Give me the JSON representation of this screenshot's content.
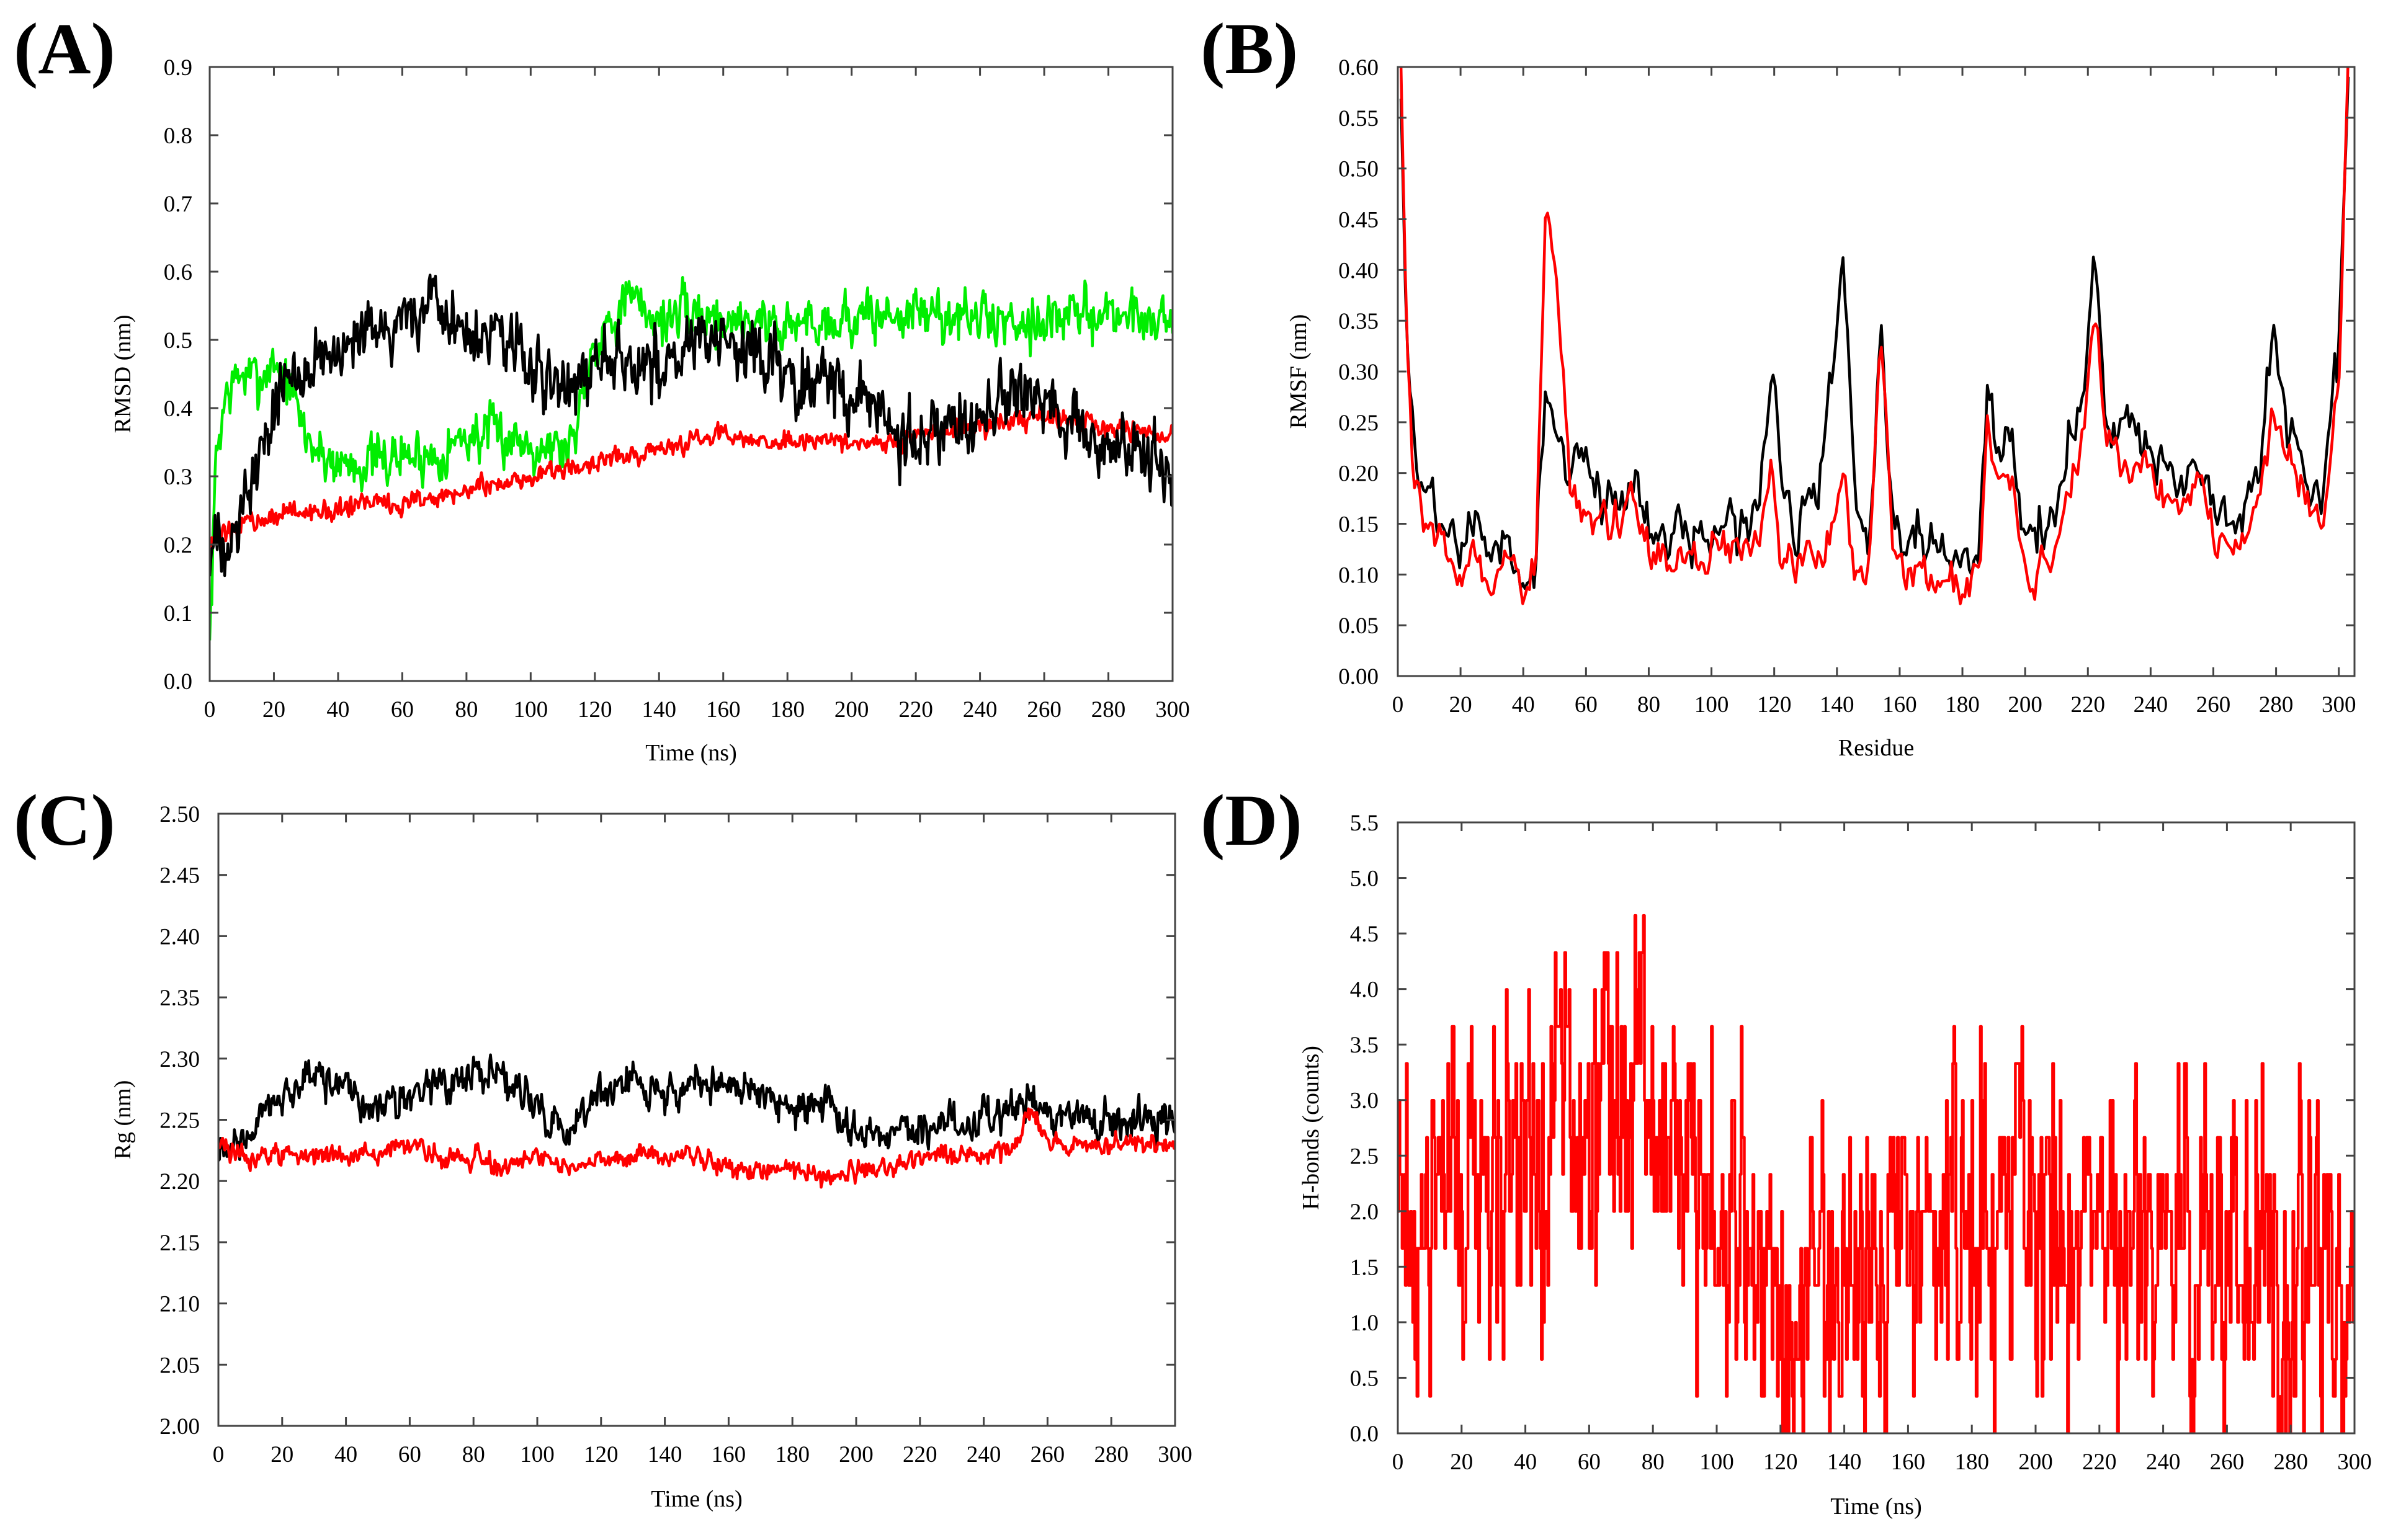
{
  "chart_data": [
    {
      "panel": "(A)",
      "type": "line",
      "title": "",
      "xlabel": "Time (ns)",
      "ylabel": "RMSD (nm)",
      "xlim": [
        0,
        300
      ],
      "ylim": [
        0,
        0.9
      ],
      "xticks": [
        0,
        20,
        40,
        60,
        80,
        100,
        120,
        140,
        160,
        180,
        200,
        220,
        240,
        260,
        280,
        300
      ],
      "xtick_labels": [
        "0",
        "20",
        "40",
        "60",
        "80",
        "100",
        "120",
        "140",
        "160",
        "180",
        "200",
        "220",
        "240",
        "260",
        "280",
        "300"
      ],
      "yticks": [
        0,
        0.1,
        0.2,
        0.3,
        0.4,
        0.5,
        0.6,
        0.7,
        0.8,
        0.9
      ],
      "ytick_labels": [
        "0.0",
        "0.1",
        "0.2",
        "0.3",
        "0.4",
        "0.5",
        "0.6",
        "0.7",
        "0.8",
        "0.9"
      ],
      "legend": "none",
      "series": [
        {
          "name": "green",
          "color": "#00ee00",
          "noise": 0.028,
          "x": [
            0,
            2,
            5,
            10,
            15,
            20,
            25,
            30,
            35,
            40,
            50,
            60,
            70,
            80,
            90,
            100,
            110,
            113,
            117,
            120,
            130,
            140,
            150,
            160,
            170,
            180,
            190,
            200,
            220,
            240,
            260,
            280,
            300
          ],
          "y": [
            0.05,
            0.33,
            0.42,
            0.45,
            0.44,
            0.47,
            0.43,
            0.36,
            0.33,
            0.32,
            0.32,
            0.33,
            0.33,
            0.36,
            0.36,
            0.35,
            0.34,
            0.35,
            0.45,
            0.5,
            0.56,
            0.53,
            0.54,
            0.53,
            0.53,
            0.52,
            0.53,
            0.53,
            0.54,
            0.53,
            0.53,
            0.54,
            0.53
          ]
        },
        {
          "name": "red",
          "color": "#ff0000",
          "noise": 0.011,
          "x": [
            0,
            3,
            6,
            10,
            20,
            30,
            40,
            50,
            60,
            70,
            80,
            90,
            100,
            110,
            120,
            130,
            140,
            150,
            160,
            170,
            180,
            190,
            200,
            210,
            220,
            230,
            240,
            250,
            260,
            270,
            280,
            290,
            300
          ],
          "y": [
            0.19,
            0.21,
            0.22,
            0.23,
            0.24,
            0.25,
            0.25,
            0.26,
            0.26,
            0.27,
            0.28,
            0.29,
            0.3,
            0.31,
            0.32,
            0.33,
            0.34,
            0.35,
            0.36,
            0.35,
            0.35,
            0.35,
            0.35,
            0.35,
            0.36,
            0.37,
            0.37,
            0.38,
            0.39,
            0.38,
            0.37,
            0.36,
            0.36
          ]
        },
        {
          "name": "black",
          "color": "#000000",
          "noise": 0.036,
          "x": [
            0,
            5,
            10,
            15,
            20,
            25,
            30,
            40,
            50,
            60,
            70,
            80,
            90,
            100,
            110,
            120,
            130,
            140,
            150,
            160,
            170,
            180,
            190,
            200,
            210,
            220,
            230,
            240,
            250,
            260,
            270,
            280,
            290,
            300
          ],
          "y": [
            0.18,
            0.22,
            0.25,
            0.32,
            0.4,
            0.45,
            0.47,
            0.47,
            0.5,
            0.53,
            0.56,
            0.5,
            0.51,
            0.46,
            0.41,
            0.49,
            0.47,
            0.46,
            0.5,
            0.49,
            0.48,
            0.46,
            0.44,
            0.42,
            0.38,
            0.35,
            0.36,
            0.38,
            0.42,
            0.41,
            0.37,
            0.34,
            0.33,
            0.31
          ]
        }
      ]
    },
    {
      "panel": "(B)",
      "type": "line",
      "title": "",
      "xlabel": "Residue",
      "ylabel": "RMSF (nm)",
      "xlim": [
        0,
        305
      ],
      "ylim": [
        0,
        0.6
      ],
      "xticks": [
        0,
        20,
        40,
        60,
        80,
        100,
        120,
        140,
        160,
        180,
        200,
        220,
        240,
        260,
        280,
        300
      ],
      "xtick_labels": [
        "0",
        "20",
        "40",
        "60",
        "80",
        "100",
        "120",
        "140",
        "160",
        "180",
        "200",
        "220",
        "240",
        "260",
        "280",
        "300"
      ],
      "yticks": [
        0,
        0.05,
        0.1,
        0.15,
        0.2,
        0.25,
        0.3,
        0.35,
        0.4,
        0.45,
        0.5,
        0.55,
        0.6
      ],
      "ytick_labels": [
        "0.00",
        "0.05",
        "0.10",
        "0.15",
        "0.20",
        "0.25",
        "0.30",
        "0.35",
        "0.40",
        "0.45",
        "0.50",
        "0.55",
        "0.60"
      ],
      "legend": "none",
      "series": [
        {
          "name": "black",
          "color": "#000000",
          "noise": 0.018,
          "x": [
            1,
            3,
            5,
            10,
            15,
            20,
            25,
            30,
            35,
            40,
            44,
            47,
            50,
            55,
            60,
            65,
            70,
            75,
            80,
            85,
            90,
            95,
            100,
            105,
            110,
            115,
            119,
            122,
            126,
            130,
            135,
            142,
            146,
            150,
            154,
            158,
            162,
            166,
            170,
            175,
            180,
            185,
            188,
            192,
            196,
            200,
            205,
            210,
            215,
            219,
            222,
            226,
            230,
            235,
            240,
            245,
            250,
            255,
            260,
            265,
            270,
            275,
            279,
            283,
            287,
            291,
            295,
            300,
            303
          ],
          "y": [
            0.58,
            0.3,
            0.22,
            0.18,
            0.14,
            0.12,
            0.16,
            0.11,
            0.12,
            0.09,
            0.11,
            0.28,
            0.25,
            0.2,
            0.21,
            0.17,
            0.18,
            0.19,
            0.15,
            0.13,
            0.15,
            0.14,
            0.14,
            0.15,
            0.15,
            0.16,
            0.33,
            0.2,
            0.15,
            0.16,
            0.2,
            0.41,
            0.15,
            0.13,
            0.34,
            0.14,
            0.12,
            0.14,
            0.13,
            0.12,
            0.11,
            0.12,
            0.29,
            0.22,
            0.24,
            0.12,
            0.15,
            0.16,
            0.24,
            0.3,
            0.43,
            0.25,
            0.26,
            0.24,
            0.22,
            0.2,
            0.18,
            0.21,
            0.17,
            0.14,
            0.15,
            0.2,
            0.34,
            0.26,
            0.22,
            0.18,
            0.17,
            0.33,
            0.6
          ]
        },
        {
          "name": "red",
          "color": "#ff0000",
          "noise": 0.015,
          "x": [
            1,
            3,
            5,
            10,
            15,
            20,
            25,
            30,
            35,
            40,
            44,
            47,
            50,
            55,
            60,
            65,
            70,
            75,
            80,
            85,
            90,
            95,
            100,
            105,
            110,
            115,
            119,
            122,
            126,
            130,
            135,
            142,
            146,
            150,
            154,
            158,
            162,
            166,
            170,
            175,
            180,
            185,
            188,
            192,
            196,
            200,
            205,
            210,
            215,
            219,
            222,
            226,
            230,
            235,
            240,
            245,
            250,
            255,
            260,
            265,
            270,
            275,
            279,
            283,
            287,
            291,
            295,
            300,
            303
          ],
          "y": [
            0.59,
            0.31,
            0.2,
            0.15,
            0.12,
            0.1,
            0.12,
            0.09,
            0.11,
            0.08,
            0.1,
            0.47,
            0.42,
            0.18,
            0.15,
            0.14,
            0.15,
            0.18,
            0.12,
            0.11,
            0.13,
            0.12,
            0.12,
            0.13,
            0.12,
            0.12,
            0.2,
            0.11,
            0.12,
            0.13,
            0.12,
            0.19,
            0.1,
            0.1,
            0.34,
            0.12,
            0.1,
            0.11,
            0.1,
            0.1,
            0.1,
            0.1,
            0.24,
            0.18,
            0.2,
            0.1,
            0.11,
            0.13,
            0.2,
            0.25,
            0.37,
            0.22,
            0.22,
            0.2,
            0.2,
            0.18,
            0.17,
            0.19,
            0.14,
            0.12,
            0.14,
            0.18,
            0.26,
            0.22,
            0.2,
            0.16,
            0.15,
            0.27,
            0.6
          ]
        }
      ]
    },
    {
      "panel": "(C)",
      "type": "line",
      "title": "",
      "xlabel": "Time (ns)",
      "ylabel": "Rg (nm)",
      "xlim": [
        0,
        300
      ],
      "ylim": [
        2.0,
        2.5
      ],
      "xticks": [
        0,
        20,
        40,
        60,
        80,
        100,
        120,
        140,
        160,
        180,
        200,
        220,
        240,
        260,
        280,
        300
      ],
      "xtick_labels": [
        "0",
        "20",
        "40",
        "60",
        "80",
        "100",
        "120",
        "140",
        "160",
        "180",
        "200",
        "220",
        "240",
        "260",
        "280",
        "300"
      ],
      "yticks": [
        2.0,
        2.05,
        2.1,
        2.15,
        2.2,
        2.25,
        2.3,
        2.35,
        2.4,
        2.45,
        2.5
      ],
      "ytick_labels": [
        "2.00",
        "2.05",
        "2.10",
        "2.15",
        "2.20",
        "2.25",
        "2.30",
        "2.35",
        "2.40",
        "2.45",
        "2.50"
      ],
      "legend": "none",
      "series": [
        {
          "name": "black",
          "color": "#000000",
          "noise": 0.011,
          "x": [
            0,
            10,
            20,
            30,
            40,
            50,
            60,
            70,
            80,
            90,
            100,
            110,
            120,
            130,
            140,
            150,
            160,
            170,
            180,
            190,
            200,
            210,
            220,
            230,
            240,
            250,
            255,
            260,
            270,
            280,
            290,
            300
          ],
          "y": [
            2.22,
            2.24,
            2.27,
            2.29,
            2.27,
            2.26,
            2.27,
            2.28,
            2.29,
            2.28,
            2.26,
            2.24,
            2.27,
            2.28,
            2.27,
            2.28,
            2.28,
            2.27,
            2.26,
            2.26,
            2.24,
            2.24,
            2.24,
            2.25,
            2.25,
            2.26,
            2.27,
            2.26,
            2.25,
            2.25,
            2.25,
            2.25
          ]
        },
        {
          "name": "red",
          "color": "#ff0000",
          "noise": 0.006,
          "x": [
            0,
            10,
            20,
            30,
            40,
            50,
            60,
            70,
            80,
            90,
            100,
            110,
            120,
            130,
            140,
            150,
            160,
            170,
            180,
            190,
            200,
            210,
            220,
            230,
            240,
            250,
            255,
            258,
            262,
            270,
            280,
            290,
            300
          ],
          "y": [
            2.23,
            2.22,
            2.22,
            2.22,
            2.22,
            2.22,
            2.23,
            2.22,
            2.22,
            2.21,
            2.22,
            2.21,
            2.22,
            2.22,
            2.22,
            2.22,
            2.21,
            2.21,
            2.21,
            2.2,
            2.21,
            2.21,
            2.22,
            2.22,
            2.22,
            2.23,
            2.26,
            2.24,
            2.23,
            2.23,
            2.23,
            2.23,
            2.23
          ]
        }
      ]
    },
    {
      "panel": "(D)",
      "type": "line",
      "title": "",
      "xlabel": "Time (ns)",
      "ylabel": "H-bonds (counts)",
      "xlim": [
        0,
        300
      ],
      "ylim": [
        0,
        5.5
      ],
      "xticks": [
        0,
        20,
        40,
        60,
        80,
        100,
        120,
        140,
        160,
        180,
        200,
        220,
        240,
        260,
        280,
        300
      ],
      "xtick_labels": [
        "0",
        "20",
        "40",
        "60",
        "80",
        "100",
        "120",
        "140",
        "160",
        "180",
        "200",
        "220",
        "240",
        "260",
        "280",
        "300"
      ],
      "yticks": [
        0,
        0.5,
        1.0,
        1.5,
        2.0,
        2.5,
        3.0,
        3.5,
        4.0,
        4.5,
        5.0,
        5.5
      ],
      "ytick_labels": [
        "0.0",
        "0.5",
        "1.0",
        "1.5",
        "2.0",
        "2.5",
        "3.0",
        "3.5",
        "4.0",
        "4.5",
        "5.0",
        "5.5"
      ],
      "legend": "none",
      "series": [
        {
          "name": "red",
          "color": "#ff0000",
          "noise": 1.1,
          "step": 0.333,
          "min": 0,
          "x": [
            0,
            10,
            20,
            30,
            40,
            50,
            60,
            70,
            80,
            90,
            100,
            110,
            115,
            120,
            130,
            140,
            150,
            160,
            170,
            180,
            190,
            195,
            200,
            210,
            220,
            230,
            240,
            250,
            260,
            270,
            280,
            290,
            300
          ],
          "y": [
            2.0,
            2.0,
            2.0,
            2.3,
            2.6,
            2.8,
            3.0,
            3.0,
            2.9,
            2.5,
            2.1,
            1.9,
            1.2,
            1.2,
            1.2,
            1.2,
            1.4,
            1.7,
            1.7,
            2.0,
            2.3,
            2.6,
            1.6,
            1.6,
            1.5,
            1.5,
            1.6,
            1.6,
            1.5,
            1.5,
            1.5,
            1.5,
            1.5
          ]
        }
      ]
    }
  ]
}
